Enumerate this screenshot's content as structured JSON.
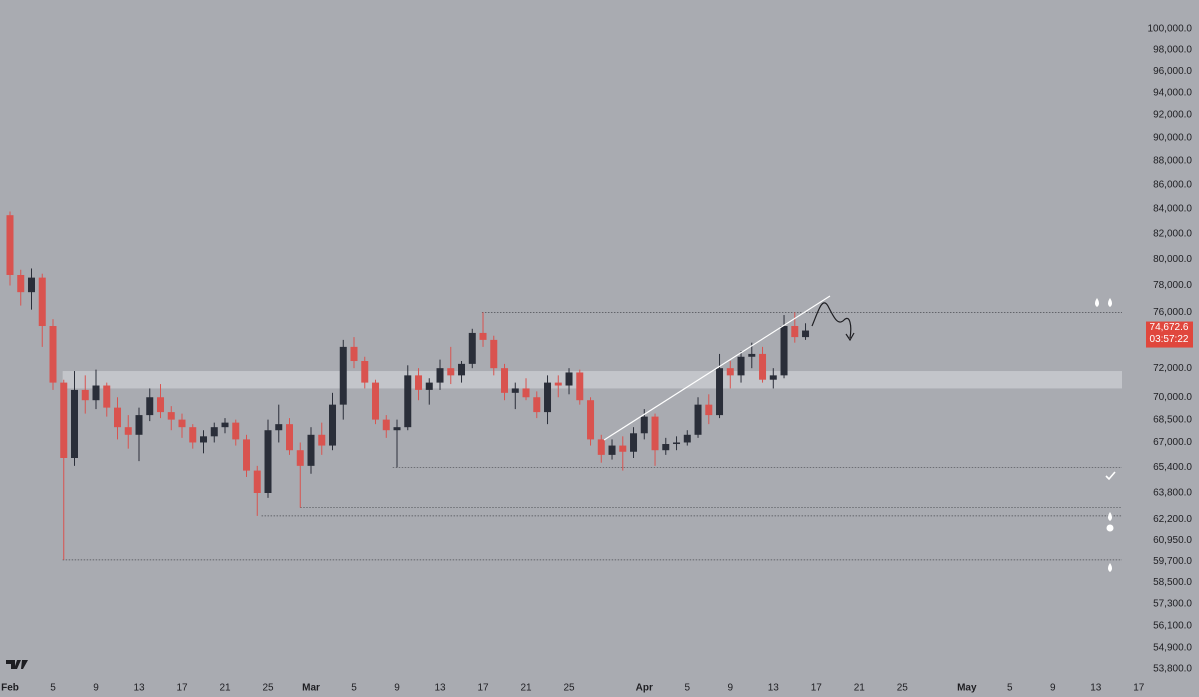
{
  "chart_data": {
    "type": "candlestick",
    "x": [
      0,
      1,
      2,
      3,
      4,
      5,
      6,
      7,
      8,
      9,
      10,
      11,
      12,
      13,
      14,
      15,
      16,
      17,
      18,
      19,
      20,
      21,
      22,
      23,
      24,
      25,
      26,
      27,
      28,
      29,
      30,
      31,
      32,
      33,
      34,
      35,
      36,
      37,
      38,
      39,
      40,
      41,
      42,
      43,
      44,
      45,
      46,
      47,
      48,
      49,
      50,
      51,
      52,
      53,
      54,
      55,
      56,
      57,
      58,
      59,
      60,
      61,
      62,
      63,
      64,
      65,
      66,
      67,
      68,
      69,
      70,
      71,
      72,
      73,
      74
    ],
    "open": [
      83500,
      78800,
      77500,
      78600,
      75000,
      71000,
      66000,
      70500,
      69800,
      70800,
      69300,
      68000,
      67500,
      68800,
      70000,
      69000,
      68500,
      68000,
      67000,
      67400,
      68000,
      68300,
      67200,
      65200,
      63800,
      67800,
      68200,
      66500,
      65500,
      67500,
      66800,
      69500,
      73500,
      72500,
      71000,
      68500,
      67800,
      68000,
      71500,
      70500,
      71000,
      72000,
      71500,
      72300,
      74500,
      74000,
      72000,
      70300,
      70600,
      70000,
      69000,
      71000,
      70800,
      71700,
      69800,
      67200,
      66200,
      66800,
      66400,
      67600,
      68700,
      66500,
      66900,
      67000,
      67500,
      69500,
      68800,
      72000,
      71500,
      72800,
      73000,
      71200,
      71500,
      75000,
      74200
    ],
    "high": [
      83800,
      79200,
      79300,
      78900,
      75500,
      71200,
      71800,
      71500,
      71900,
      71000,
      70000,
      68800,
      69300,
      70600,
      70900,
      69400,
      68900,
      68200,
      67800,
      68300,
      68600,
      68500,
      67500,
      65500,
      68500,
      69500,
      68600,
      67000,
      68000,
      68300,
      70300,
      74000,
      74200,
      72800,
      71200,
      68800,
      68500,
      72200,
      72000,
      71300,
      72600,
      73500,
      72500,
      74800,
      76000,
      74300,
      72300,
      71000,
      71300,
      70400,
      71500,
      71500,
      72000,
      71900,
      70000,
      67500,
      67200,
      67400,
      68000,
      69200,
      68900,
      67300,
      67400,
      67800,
      70000,
      70200,
      73000,
      72500,
      73200,
      73800,
      73500,
      72000,
      75800,
      76000,
      75200
    ],
    "low": [
      78000,
      76500,
      76200,
      73500,
      70500,
      59800,
      65500,
      68900,
      69200,
      68700,
      67200,
      66600,
      65800,
      68400,
      68600,
      67800,
      67300,
      66600,
      66300,
      67000,
      67600,
      66800,
      64800,
      62400,
      63500,
      67000,
      66200,
      62900,
      65000,
      66200,
      66500,
      68500,
      72000,
      70600,
      68200,
      67300,
      65400,
      67800,
      69800,
      69500,
      70500,
      70900,
      71000,
      72000,
      73500,
      71500,
      69800,
      69200,
      69800,
      68600,
      68200,
      70000,
      70200,
      69500,
      66800,
      65700,
      65900,
      65200,
      66000,
      67200,
      65500,
      66200,
      66500,
      66800,
      67300,
      68200,
      68600,
      70600,
      71000,
      72000,
      71000,
      70600,
      71300,
      73800,
      74000
    ],
    "close": [
      78800,
      77500,
      78600,
      75000,
      71000,
      66000,
      70500,
      69800,
      70800,
      69300,
      68000,
      67500,
      68800,
      70000,
      69000,
      68500,
      68000,
      67000,
      67400,
      68000,
      68300,
      67200,
      65200,
      63800,
      67800,
      68200,
      66500,
      65500,
      67500,
      66800,
      69500,
      73500,
      72500,
      71000,
      68500,
      67800,
      68000,
      71500,
      70500,
      71000,
      72000,
      71500,
      72300,
      74500,
      74000,
      72000,
      70300,
      70600,
      70000,
      69000,
      71000,
      70800,
      71700,
      69800,
      67200,
      66200,
      66800,
      66400,
      67600,
      68700,
      66500,
      66900,
      67000,
      67500,
      69500,
      68800,
      72000,
      71500,
      72800,
      73000,
      71200,
      71500,
      75000,
      74200,
      74672.6
    ],
    "up_color": "#2a2e39",
    "down_color": "#d9534f",
    "log_scale": true,
    "ylim": [
      53230,
      102850
    ],
    "yticks": [
      {
        "value": 100000,
        "label": "100,000.0"
      },
      {
        "value": 98000,
        "label": "98,000.0"
      },
      {
        "value": 96000,
        "label": "96,000.0"
      },
      {
        "value": 94000,
        "label": "94,000.0"
      },
      {
        "value": 92000,
        "label": "92,000.0"
      },
      {
        "value": 90000,
        "label": "90,000.0"
      },
      {
        "value": 88000,
        "label": "88,000.0"
      },
      {
        "value": 86000,
        "label": "86,000.0"
      },
      {
        "value": 84000,
        "label": "84,000.0"
      },
      {
        "value": 82000,
        "label": "82,000.0"
      },
      {
        "value": 80000,
        "label": "80,000.0"
      },
      {
        "value": 78000,
        "label": "78,000.0"
      },
      {
        "value": 76000,
        "label": "76,000.0"
      },
      {
        "value": 72000,
        "label": "72,000.0"
      },
      {
        "value": 70000,
        "label": "70,000.0"
      },
      {
        "value": 68500,
        "label": "68,500.0"
      },
      {
        "value": 67000,
        "label": "67,000.0"
      },
      {
        "value": 65400,
        "label": "65,400.0"
      },
      {
        "value": 63800,
        "label": "63,800.0"
      },
      {
        "value": 62200,
        "label": "62,200.0"
      },
      {
        "value": 60950,
        "label": "60,950.0"
      },
      {
        "value": 59700,
        "label": "59,700.0"
      },
      {
        "value": 58500,
        "label": "58,500.0"
      },
      {
        "value": 57300,
        "label": "57,300.0"
      },
      {
        "value": 56100,
        "label": "56,100.0"
      },
      {
        "value": 54900,
        "label": "54,900.0"
      },
      {
        "value": 53800,
        "label": "53,800.0"
      }
    ],
    "xlim": [
      -0.93,
      110.6
    ],
    "xticks": [
      {
        "value": 0,
        "label": "Feb"
      },
      {
        "value": 4,
        "label": "5"
      },
      {
        "value": 8,
        "label": "9"
      },
      {
        "value": 12,
        "label": "13"
      },
      {
        "value": 16,
        "label": "17"
      },
      {
        "value": 20,
        "label": "21"
      },
      {
        "value": 24,
        "label": "25"
      },
      {
        "value": 28,
        "label": "Mar"
      },
      {
        "value": 32,
        "label": "5"
      },
      {
        "value": 36,
        "label": "9"
      },
      {
        "value": 40,
        "label": "13"
      },
      {
        "value": 44,
        "label": "17"
      },
      {
        "value": 48,
        "label": "21"
      },
      {
        "value": 52,
        "label": "25"
      },
      {
        "value": 59,
        "label": "Apr"
      },
      {
        "value": 63,
        "label": "5"
      },
      {
        "value": 67,
        "label": "9"
      },
      {
        "value": 71,
        "label": "13"
      },
      {
        "value": 75,
        "label": "17"
      },
      {
        "value": 79,
        "label": "21"
      },
      {
        "value": 83,
        "label": "25"
      },
      {
        "value": 89,
        "label": "May"
      },
      {
        "value": 93,
        "label": "5"
      },
      {
        "value": 97,
        "label": "9"
      },
      {
        "value": 101,
        "label": "13"
      },
      {
        "value": 105,
        "label": "17"
      }
    ],
    "levels": [
      {
        "price": 76000,
        "from": 43.9
      },
      {
        "price": 65400,
        "from": 35.6
      },
      {
        "price": 62900,
        "from": 27
      },
      {
        "price": 62400,
        "from": 23.4
      },
      {
        "price": 59800,
        "from": 4.9
      }
    ],
    "zone": {
      "low": 70600,
      "high": 71800,
      "from": 4.9
    },
    "last_price": 74672.6,
    "last_price_label": "74,672.6",
    "countdown": "03:57:22"
  }
}
